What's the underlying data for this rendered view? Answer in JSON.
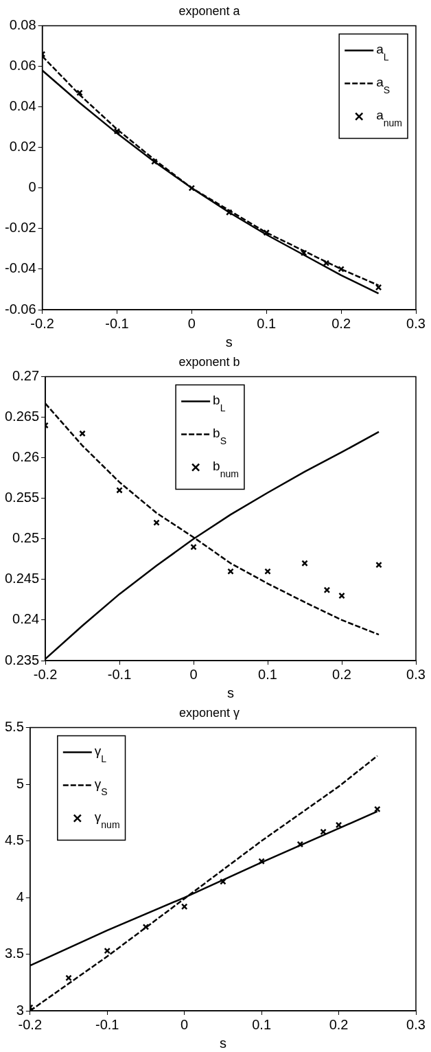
{
  "chart_data": [
    {
      "type": "line",
      "title": "exponent a",
      "xlabel": "s",
      "xlim": [
        -0.2,
        0.3
      ],
      "xticks": [
        -0.2,
        -0.1,
        0,
        0.1,
        0.2,
        0.3
      ],
      "ylim": [
        -0.06,
        0.08
      ],
      "yticks": [
        -0.06,
        -0.04,
        -0.02,
        0,
        0.02,
        0.04,
        0.06,
        0.08
      ],
      "legend": "top right",
      "series": [
        {
          "name": "a$_{L}$",
          "color": "#000000",
          "line_style": "solid",
          "marker": "none",
          "x": [
            -0.2,
            -0.15,
            -0.1,
            -0.05,
            0,
            0.05,
            0.1,
            0.15,
            0.2,
            0.25
          ],
          "values": [
            0.058,
            0.042,
            0.027,
            0.013,
            0,
            -0.012,
            -0.023,
            -0.033,
            -0.043,
            -0.052
          ]
        },
        {
          "name": "a$_{S}$",
          "color": "#000000",
          "line_style": "dashed",
          "marker": "none",
          "x": [
            -0.2,
            -0.15,
            -0.1,
            -0.05,
            0,
            0.05,
            0.1,
            0.15,
            0.2,
            0.25
          ],
          "values": [
            0.065,
            0.046,
            0.029,
            0.014,
            0,
            -0.011,
            -0.022,
            -0.031,
            -0.04,
            -0.048
          ]
        },
        {
          "name": "a$_{num}$",
          "type": "scatter",
          "color": "#000000",
          "marker": "cross",
          "x": [
            -0.2,
            -0.15,
            -0.1,
            -0.05,
            0,
            0.05,
            0.1,
            0.15,
            0.18,
            0.2,
            0.25
          ],
          "values": [
            0.066,
            0.047,
            0.028,
            0.013,
            0,
            -0.012,
            -0.022,
            -0.032,
            -0.037,
            -0.04,
            -0.049
          ]
        }
      ]
    },
    {
      "type": "line",
      "title": "exponent b",
      "xlabel": "s",
      "xlim": [
        -0.2,
        0.3
      ],
      "xticks": [
        -0.2,
        -0.1,
        0,
        0.1,
        0.2,
        0.3
      ],
      "ylim": [
        0.235,
        0.27
      ],
      "yticks": [
        0.235,
        0.24,
        0.245,
        0.25,
        0.255,
        0.26,
        0.265,
        0.27
      ],
      "legend": "top",
      "series": [
        {
          "name": "b$_{L}$",
          "color": "#000000",
          "line_style": "solid",
          "marker": "none",
          "x": [
            -0.2,
            -0.15,
            -0.1,
            -0.05,
            0,
            0.05,
            0.1,
            0.15,
            0.2,
            0.25
          ],
          "values": [
            0.2352,
            0.2393,
            0.2432,
            0.2467,
            0.25,
            0.253,
            0.2557,
            0.2583,
            0.2607,
            0.2632
          ]
        },
        {
          "name": "b$_{S}$",
          "color": "#000000",
          "line_style": "dashed",
          "marker": "none",
          "x": [
            -0.2,
            -0.15,
            -0.1,
            -0.05,
            0,
            0.05,
            0.1,
            0.15,
            0.2,
            0.25
          ],
          "values": [
            0.2667,
            0.2615,
            0.257,
            0.2532,
            0.2502,
            0.247,
            0.2445,
            0.2422,
            0.24,
            0.2382
          ]
        },
        {
          "name": "b$_{num}$",
          "type": "scatter",
          "color": "#000000",
          "marker": "cross",
          "x": [
            -0.2,
            -0.15,
            -0.1,
            -0.05,
            0,
            0.05,
            0.1,
            0.15,
            0.18,
            0.2,
            0.25
          ],
          "values": [
            0.264,
            0.263,
            0.256,
            0.252,
            0.249,
            0.246,
            0.246,
            0.247,
            0.2437,
            0.243,
            0.2468
          ]
        }
      ]
    },
    {
      "type": "line",
      "title": "exponent γ",
      "xlabel": "s",
      "xlim": [
        -0.2,
        0.3
      ],
      "xticks": [
        -0.2,
        -0.1,
        0,
        0.1,
        0.2,
        0.3
      ],
      "ylim": [
        3,
        5.5
      ],
      "yticks": [
        3,
        3.5,
        4,
        4.5,
        5,
        5.5
      ],
      "legend": "top left",
      "series": [
        {
          "name": "γ$_{L}$",
          "color": "#000000",
          "line_style": "solid",
          "marker": "none",
          "x": [
            -0.2,
            -0.1,
            0,
            0.1,
            0.2,
            0.25
          ],
          "values": [
            3.4,
            3.71,
            4,
            4.31,
            4.61,
            4.76
          ]
        },
        {
          "name": "γ$_{S}$",
          "color": "#000000",
          "line_style": "dashed",
          "marker": "none",
          "x": [
            -0.2,
            -0.1,
            0,
            0.1,
            0.2,
            0.25
          ],
          "values": [
            3,
            3.48,
            3.99,
            4.5,
            4.98,
            5.25
          ]
        },
        {
          "name": "γ$_{num}$",
          "type": "scatter",
          "color": "#000000",
          "marker": "cross",
          "x": [
            -0.2,
            -0.15,
            -0.1,
            -0.05,
            0,
            0.05,
            0.1,
            0.15,
            0.18,
            0.2,
            0.25
          ],
          "values": [
            3.03,
            3.29,
            3.53,
            3.74,
            3.92,
            4.14,
            4.32,
            4.47,
            4.58,
            4.64,
            4.78
          ]
        }
      ]
    }
  ]
}
